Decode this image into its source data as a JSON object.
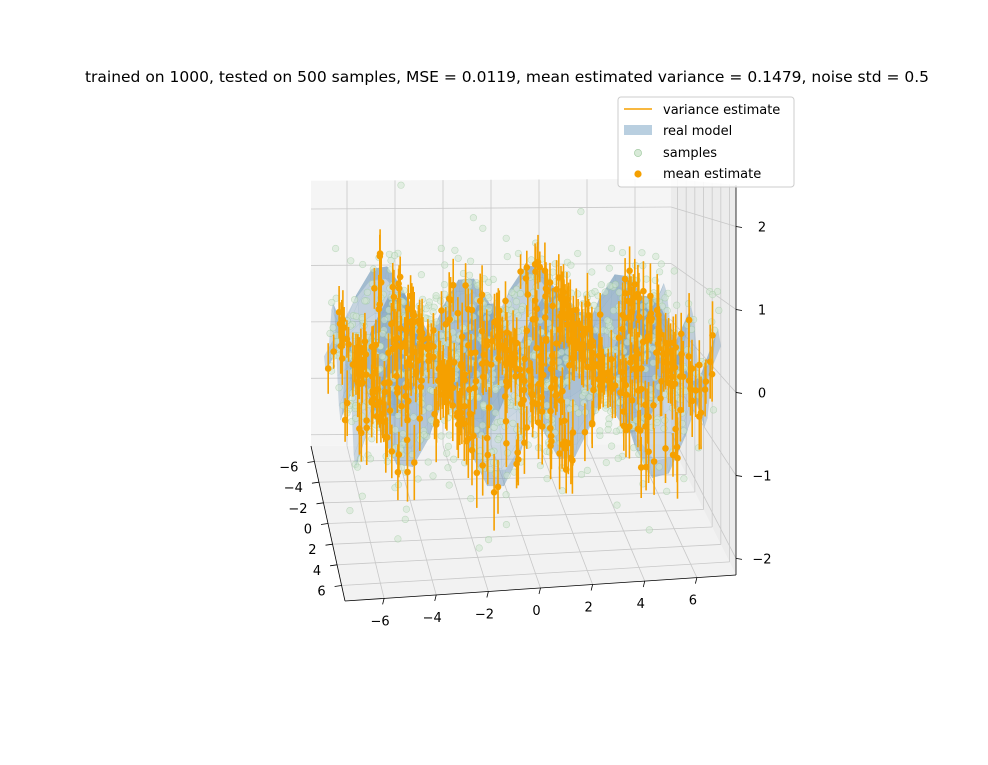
{
  "chart_data": {
    "type": "scatter3d",
    "title": "trained on 1000, tested on 500 samples, MSE = 0.0119, mean estimated variance = 0.1479, noise std = 0.5",
    "axes": {
      "x": {
        "label": "",
        "range": [
          -7.5,
          7.5
        ],
        "ticks": [
          -6,
          -4,
          -2,
          0,
          2,
          4,
          6
        ]
      },
      "y": {
        "label": "",
        "range": [
          -7.5,
          7.5
        ],
        "ticks": [
          -6,
          -4,
          -2,
          0,
          2,
          4,
          6
        ]
      },
      "z": {
        "label": "",
        "range": [
          -2.2,
          2.5
        ],
        "ticks": [
          -2,
          -1,
          0,
          1,
          2
        ]
      }
    },
    "grid": true,
    "legend": {
      "placement": "top-right",
      "entries": [
        {
          "key": "variance",
          "label": "variance estimate",
          "marker": "line",
          "color": "#f5a000"
        },
        {
          "key": "model",
          "label": "real model",
          "marker": "patch",
          "color": "#b9cfe0"
        },
        {
          "key": "samples",
          "label": "samples",
          "marker": "circle",
          "color": "#cfe6cf"
        },
        {
          "key": "mean",
          "label": "mean estimate",
          "marker": "circle",
          "color": "#f5a000"
        }
      ]
    },
    "colors": {
      "samples_fill": "#cfe6cf",
      "samples_edge": "#8fc08f",
      "mean": "#f5a000",
      "variance": "#f5a000",
      "surface": "#7c9fbd",
      "surface_edge": "#5f86a6"
    },
    "series": [
      {
        "name": "samples",
        "kind": "scatter",
        "n_points": 1000
      },
      {
        "name": "mean estimate",
        "kind": "scatter",
        "n_points": 500
      },
      {
        "name": "variance estimate",
        "kind": "errorbar",
        "n_points": 500
      },
      {
        "name": "real model",
        "kind": "surface",
        "function": "sin(x)*cos(y)*2"
      }
    ]
  }
}
